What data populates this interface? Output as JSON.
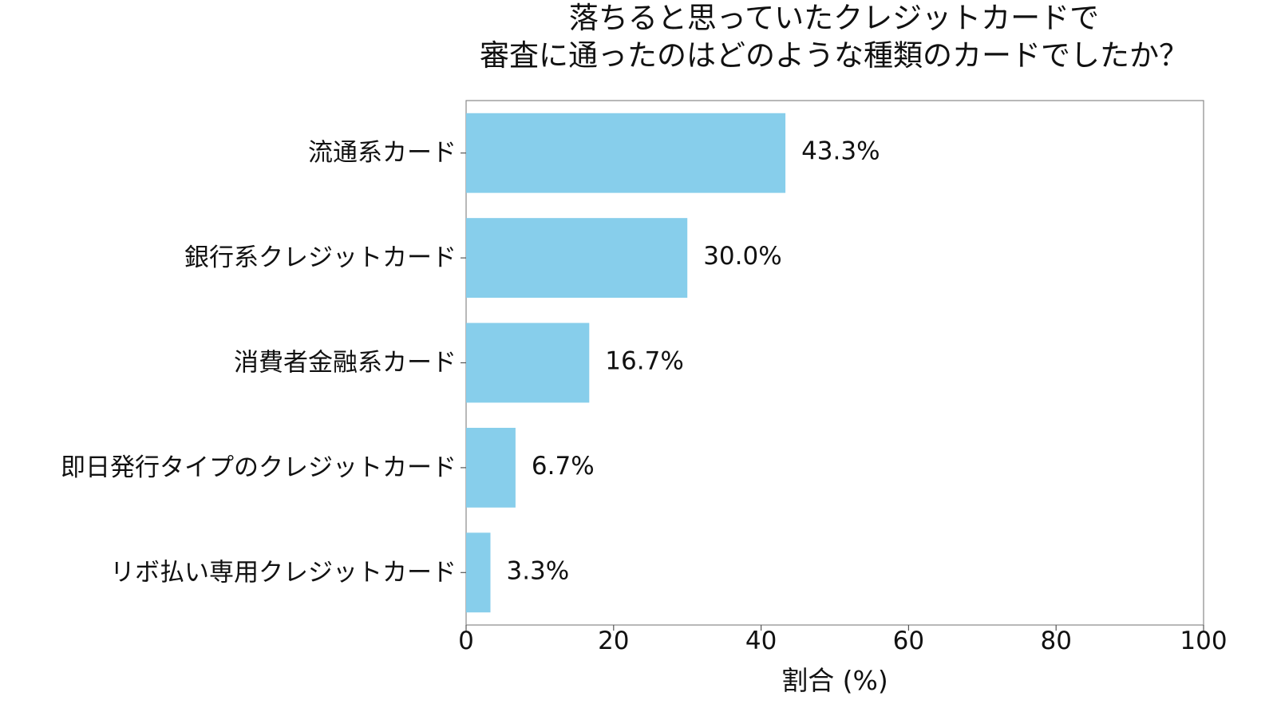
{
  "chart_data": {
    "type": "bar",
    "orientation": "horizontal",
    "title_lines": [
      "落ちると思っていたクレジットカードで",
      "審査に通ったのはどのような種類のカードでしたか？"
    ],
    "categories": [
      "流通系カード",
      "銀行系クレジットカード",
      "消費者金融系カード",
      "即日発行タイプのクレジットカード",
      "リボ払い専用クレジットカード"
    ],
    "values": [
      43.3,
      30.0,
      16.7,
      6.7,
      3.3
    ],
    "value_labels": [
      "43.3%",
      "30.0%",
      "16.7%",
      "6.7%",
      "3.3%"
    ],
    "xlabel": "割合 (%)",
    "ylabel": "",
    "xlim": [
      0,
      100
    ],
    "xticks": [
      0,
      20,
      40,
      60,
      80,
      100
    ],
    "xtick_labels": [
      "0",
      "20",
      "40",
      "60",
      "80",
      "100"
    ],
    "grid": false,
    "bar_color": "#87CEEB"
  }
}
